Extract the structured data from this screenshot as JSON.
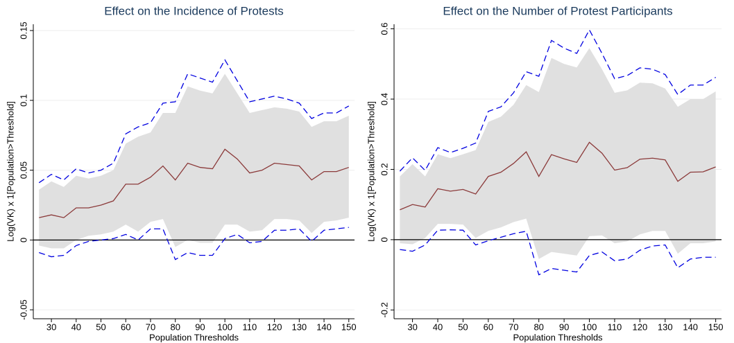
{
  "chart_data": [
    {
      "type": "line",
      "title": "Effect on the Incidence of Protests",
      "x_label": "Population Thresholds",
      "y_label": "Log(VK) x 1[Population>Threshold]",
      "x": [
        25,
        30,
        35,
        40,
        45,
        50,
        55,
        60,
        65,
        70,
        75,
        80,
        85,
        90,
        95,
        100,
        105,
        110,
        115,
        120,
        125,
        130,
        135,
        140,
        145,
        150
      ],
      "xlim": [
        22.7,
        152.3
      ],
      "xticks": [
        30,
        40,
        50,
        60,
        70,
        80,
        90,
        100,
        110,
        120,
        130,
        140,
        150
      ],
      "ylim": [
        -0.0564,
        0.1545
      ],
      "yticks": [
        -0.05,
        0,
        0.05,
        0.1,
        0.15
      ],
      "grid": true,
      "reference_line": {
        "value": 0,
        "color": "#000000"
      },
      "band": {
        "color": "#e0e0e0",
        "upper": [
          0.036,
          0.042,
          0.038,
          0.046,
          0.044,
          0.046,
          0.05,
          0.069,
          0.074,
          0.077,
          0.091,
          0.091,
          0.11,
          0.107,
          0.105,
          0.119,
          0.105,
          0.091,
          0.093,
          0.095,
          0.094,
          0.092,
          0.081,
          0.085,
          0.085,
          0.089
        ],
        "lower": [
          -0.004,
          -0.006,
          -0.006,
          0.0,
          0.003,
          0.004,
          0.006,
          0.011,
          0.006,
          0.013,
          0.015,
          -0.005,
          0.0,
          -0.002,
          -0.002,
          0.011,
          0.011,
          0.006,
          0.007,
          0.015,
          0.015,
          0.014,
          0.005,
          0.013,
          0.014,
          0.016
        ]
      },
      "series": [
        {
          "color": "#0000e0",
          "dashed": true,
          "values": [
            0.041,
            0.047,
            0.043,
            0.051,
            0.048,
            0.05,
            0.055,
            0.076,
            0.081,
            0.084,
            0.098,
            0.099,
            0.119,
            0.116,
            0.113,
            0.129,
            0.114,
            0.099,
            0.101,
            0.103,
            0.101,
            0.098,
            0.087,
            0.091,
            0.091,
            0.096
          ]
        },
        {
          "color": "#0000e0",
          "dashed": true,
          "values": [
            -0.009,
            -0.012,
            -0.011,
            -0.004,
            -0.001,
            0.0,
            0.001,
            0.004,
            0.0,
            0.008,
            0.008,
            -0.014,
            -0.009,
            -0.011,
            -0.011,
            0.001,
            0.004,
            -0.002,
            -0.001,
            0.007,
            0.007,
            0.008,
            -0.001,
            0.007,
            0.008,
            0.009
          ]
        },
        {
          "color": "#8b3a3a",
          "dashed": false,
          "values": [
            0.016,
            0.018,
            0.016,
            0.023,
            0.023,
            0.025,
            0.028,
            0.04,
            0.04,
            0.045,
            0.053,
            0.043,
            0.055,
            0.052,
            0.051,
            0.065,
            0.058,
            0.048,
            0.05,
            0.055,
            0.054,
            0.053,
            0.043,
            0.049,
            0.049,
            0.052
          ]
        }
      ]
    },
    {
      "type": "line",
      "title": "Effect on the Number of Protest Participants",
      "x_label": "Population Thresholds",
      "y_label": "Log(VK) x 1[Population>Threshold]",
      "x": [
        25,
        30,
        35,
        40,
        45,
        50,
        55,
        60,
        65,
        70,
        75,
        80,
        85,
        90,
        95,
        100,
        105,
        110,
        115,
        120,
        125,
        130,
        135,
        140,
        145,
        150
      ],
      "xlim": [
        22.7,
        152.3
      ],
      "xticks": [
        30,
        40,
        50,
        60,
        70,
        80,
        90,
        100,
        110,
        120,
        130,
        140,
        150
      ],
      "ylim": [
        -0.225,
        0.613
      ],
      "yticks": [
        -0.2,
        0,
        0.2,
        0.4,
        0.6
      ],
      "grid": true,
      "reference_line": {
        "value": 0,
        "color": "#000000"
      },
      "band": {
        "color": "#e0e0e0",
        "upper": [
          0.18,
          0.215,
          0.18,
          0.243,
          0.232,
          0.243,
          0.255,
          0.335,
          0.35,
          0.384,
          0.44,
          0.42,
          0.517,
          0.5,
          0.49,
          0.545,
          0.485,
          0.418,
          0.425,
          0.447,
          0.445,
          0.43,
          0.378,
          0.4,
          0.4,
          0.422
        ],
        "lower": [
          -0.01,
          -0.013,
          0.005,
          0.045,
          0.045,
          0.043,
          0.005,
          0.025,
          0.035,
          0.05,
          0.06,
          -0.055,
          -0.035,
          -0.04,
          -0.045,
          0.01,
          0.012,
          -0.01,
          -0.005,
          0.015,
          0.025,
          0.025,
          -0.04,
          -0.01,
          -0.01,
          -0.005
        ]
      },
      "series": [
        {
          "color": "#0000e0",
          "dashed": true,
          "values": [
            0.195,
            0.233,
            0.197,
            0.262,
            0.248,
            0.26,
            0.275,
            0.365,
            0.378,
            0.418,
            0.478,
            0.465,
            0.567,
            0.545,
            0.53,
            0.597,
            0.53,
            0.458,
            0.467,
            0.489,
            0.485,
            0.47,
            0.413,
            0.44,
            0.44,
            0.462
          ]
        },
        {
          "color": "#0000e0",
          "dashed": true,
          "values": [
            -0.028,
            -0.033,
            -0.015,
            0.027,
            0.028,
            0.027,
            -0.015,
            -0.003,
            0.007,
            0.017,
            0.024,
            -0.1,
            -0.082,
            -0.087,
            -0.092,
            -0.045,
            -0.035,
            -0.06,
            -0.055,
            -0.03,
            -0.018,
            -0.015,
            -0.08,
            -0.055,
            -0.05,
            -0.05
          ]
        },
        {
          "color": "#8b3a3a",
          "dashed": false,
          "values": [
            0.085,
            0.1,
            0.093,
            0.145,
            0.138,
            0.143,
            0.13,
            0.18,
            0.192,
            0.217,
            0.25,
            0.18,
            0.242,
            0.23,
            0.22,
            0.277,
            0.246,
            0.198,
            0.205,
            0.229,
            0.232,
            0.227,
            0.166,
            0.192,
            0.193,
            0.207
          ]
        }
      ]
    }
  ]
}
